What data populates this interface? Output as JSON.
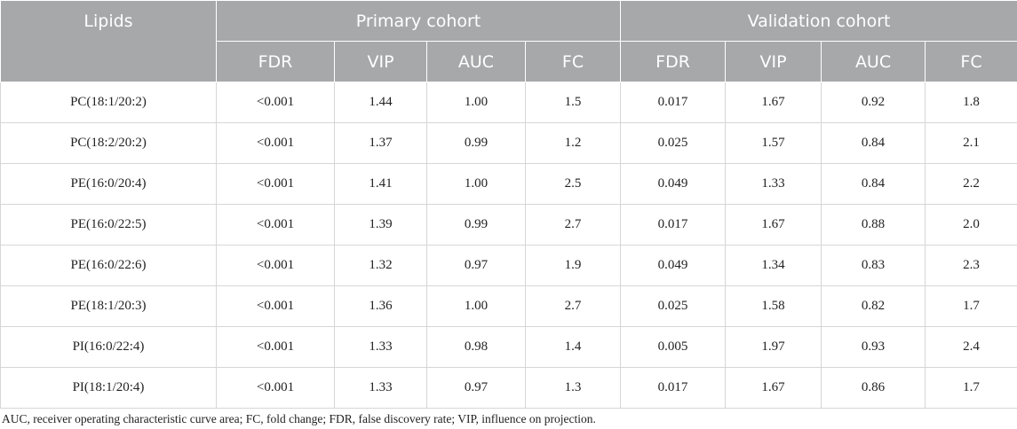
{
  "table": {
    "header": {
      "lipids": "Lipids",
      "primary_cohort": "Primary cohort",
      "validation_cohort": "Validation cohort",
      "sub_columns": [
        "FDR",
        "VIP",
        "AUC",
        "FC",
        "FDR",
        "VIP",
        "AUC",
        "FC"
      ]
    },
    "rows": [
      [
        "PC(18:1/20:2)",
        "<0.001",
        "1.44",
        "1.00",
        "1.5",
        "0.017",
        "1.67",
        "0.92",
        "1.8"
      ],
      [
        "PC(18:2/20:2)",
        "<0.001",
        "1.37",
        "0.99",
        "1.2",
        "0.025",
        "1.57",
        "0.84",
        "2.1"
      ],
      [
        "PE(16:0/20:4)",
        "<0.001",
        "1.41",
        "1.00",
        "2.5",
        "0.049",
        "1.33",
        "0.84",
        "2.2"
      ],
      [
        "PE(16:0/22:5)",
        "<0.001",
        "1.39",
        "0.99",
        "2.7",
        "0.017",
        "1.67",
        "0.88",
        "2.0"
      ],
      [
        "PE(16:0/22:6)",
        "<0.001",
        "1.32",
        "0.97",
        "1.9",
        "0.049",
        "1.34",
        "0.83",
        "2.3"
      ],
      [
        "PE(18:1/20:3)",
        "<0.001",
        "1.36",
        "1.00",
        "2.7",
        "0.025",
        "1.58",
        "0.82",
        "1.7"
      ],
      [
        "PI(16:0/22:4)",
        "<0.001",
        "1.33",
        "0.98",
        "1.4",
        "0.005",
        "1.97",
        "0.93",
        "2.4"
      ],
      [
        "PI(18:1/20:4)",
        "<0.001",
        "1.33",
        "0.97",
        "1.3",
        "0.017",
        "1.67",
        "0.86",
        "1.7"
      ]
    ]
  },
  "footnote": "AUC, receiver operating characteristic curve area; FC, fold change; FDR, false discovery rate; VIP, influence on projection.",
  "colors": {
    "header_bg": "#a7a8aa",
    "header_text": "#ffffff",
    "grid_line": "#d6d6d6"
  }
}
